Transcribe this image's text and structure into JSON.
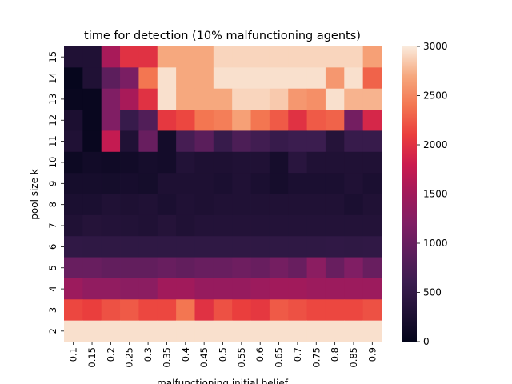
{
  "chart_data": {
    "type": "heatmap",
    "title": "time for detection (10% malfunctioning agents)",
    "xlabel": "malfunctioning initial belief",
    "ylabel": "pool size k",
    "x": [
      "0.1",
      "0.15",
      "0.2",
      "0.25",
      "0.3",
      "0.35",
      "0.4",
      "0.45",
      "0.5",
      "0.55",
      "0.6",
      "0.65",
      "0.7",
      "0.75",
      "0.8",
      "0.85",
      "0.9"
    ],
    "y": [
      "15",
      "14",
      "13",
      "12",
      "11",
      "10",
      "9",
      "8",
      "7",
      "6",
      "5",
      "4",
      "3",
      "2"
    ],
    "values": [
      [
        300,
        300,
        1550,
        2000,
        2000,
        2700,
        2700,
        2700,
        2900,
        2900,
        2900,
        2900,
        2900,
        2900,
        2900,
        2900,
        2650
      ],
      [
        30,
        300,
        900,
        1150,
        2400,
        2950,
        2700,
        2700,
        2950,
        2950,
        2950,
        2950,
        2950,
        2950,
        2600,
        2950,
        2300
      ],
      [
        60,
        60,
        1200,
        1550,
        2000,
        2950,
        2700,
        2700,
        2700,
        2900,
        2900,
        2850,
        2600,
        2550,
        2950,
        2750,
        2750
      ],
      [
        260,
        60,
        1200,
        550,
        800,
        2050,
        2150,
        2400,
        2450,
        2650,
        2400,
        2250,
        2000,
        2250,
        2300,
        1100,
        1900
      ],
      [
        300,
        60,
        1750,
        300,
        1000,
        180,
        700,
        880,
        550,
        750,
        650,
        550,
        600,
        600,
        350,
        550,
        550
      ],
      [
        100,
        150,
        130,
        160,
        200,
        180,
        320,
        280,
        280,
        300,
        300,
        200,
        400,
        300,
        300,
        300,
        300
      ],
      [
        200,
        200,
        190,
        210,
        190,
        280,
        280,
        280,
        250,
        300,
        250,
        200,
        250,
        250,
        250,
        300,
        250
      ],
      [
        250,
        250,
        300,
        280,
        300,
        250,
        300,
        280,
        300,
        300,
        300,
        300,
        300,
        300,
        300,
        250,
        300
      ],
      [
        300,
        350,
        330,
        320,
        300,
        350,
        300,
        330,
        330,
        330,
        330,
        330,
        330,
        330,
        330,
        330,
        330
      ],
      [
        480,
        470,
        470,
        470,
        470,
        470,
        470,
        470,
        470,
        470,
        470,
        470,
        470,
        470,
        480,
        470,
        480
      ],
      [
        1000,
        1000,
        950,
        950,
        950,
        1000,
        950,
        1000,
        1000,
        1050,
        1000,
        1100,
        1000,
        1300,
        1000,
        1200,
        1000
      ],
      [
        1450,
        1350,
        1350,
        1300,
        1300,
        1500,
        1500,
        1400,
        1400,
        1400,
        1450,
        1500,
        1500,
        1450,
        1450,
        1450,
        1450
      ],
      [
        2150,
        2100,
        2200,
        2250,
        2150,
        2150,
        2400,
        2000,
        2200,
        2100,
        2050,
        2250,
        2200,
        2150,
        2150,
        2150,
        2200
      ],
      [
        2950,
        2950,
        2950,
        2950,
        2950,
        2950,
        2950,
        2950,
        2950,
        2950,
        2950,
        2950,
        2950,
        2950,
        2950,
        2950,
        2950
      ]
    ],
    "vmin": 0,
    "vmax": 3000,
    "colormap": "rocket",
    "colorbar_ticks": [
      "0",
      "500",
      "1000",
      "1500",
      "2000",
      "2500",
      "3000"
    ],
    "colorbar_tick_values": [
      0,
      500,
      1000,
      1500,
      2000,
      2500,
      3000
    ],
    "grid": false,
    "legend": "colorbar-right"
  }
}
